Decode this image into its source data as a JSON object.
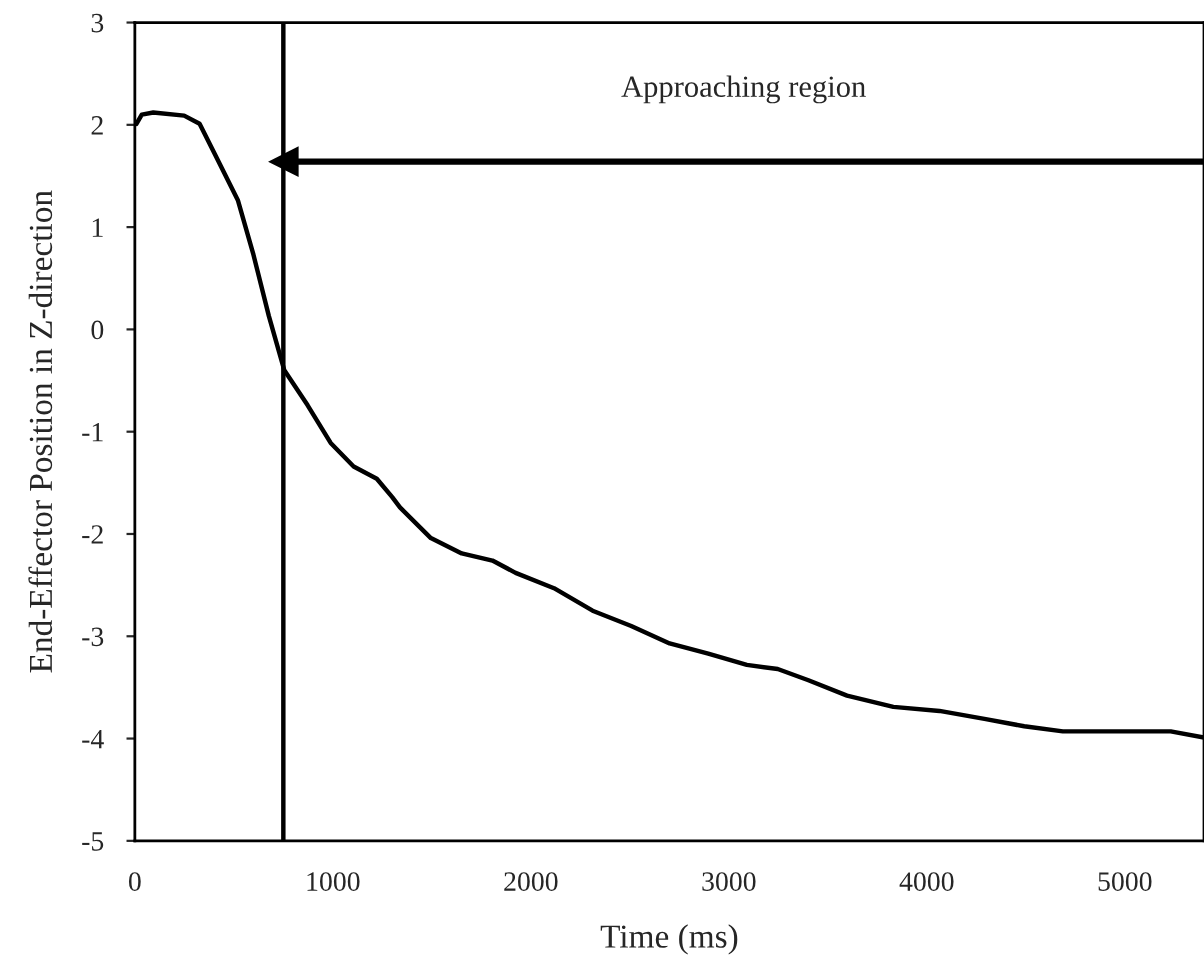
{
  "chart_data": {
    "type": "line",
    "xlabel": "Time (ms)",
    "ylabel": "End-Effector Position in Z-direction",
    "x": [
      8,
      35,
      93,
      249,
      327,
      405,
      521,
      599,
      677,
      755,
      872,
      989,
      1105,
      1222,
      1300,
      1339,
      1495,
      1651,
      1806,
      1923,
      2117,
      2312,
      2507,
      2701,
      2896,
      3091,
      3247,
      3402,
      3597,
      3831,
      4064,
      4298,
      4492,
      4687,
      4998,
      5232,
      5400
    ],
    "series": [
      {
        "color": "#000000",
        "values": [
          2.01,
          2.1,
          2.12,
          2.09,
          2.01,
          1.71,
          1.26,
          0.73,
          0.13,
          -0.4,
          -0.74,
          -1.11,
          -1.34,
          -1.46,
          -1.64,
          -1.74,
          -2.04,
          -2.19,
          -2.26,
          -2.38,
          -2.53,
          -2.75,
          -2.9,
          -3.07,
          -3.17,
          -3.28,
          -3.32,
          -3.43,
          -3.58,
          -3.69,
          -3.73,
          -3.81,
          -3.88,
          -3.93,
          -3.93,
          -3.93,
          -3.99
        ]
      },
      {
        "type": "line",
        "name": "Approaching region",
        "color": "#000000",
        "x": [
          750,
          5400
        ],
        "values": [
          1.64,
          1.64
        ],
        "marker": "triangle"
      }
    ],
    "xlim": [
      0,
      5400
    ],
    "ylim": [
      -5,
      3
    ],
    "xticks": [
      0,
      1000,
      2000,
      3000,
      4000,
      5000
    ],
    "yticks": [
      -5,
      -4,
      -3,
      -2,
      -1,
      0,
      1,
      2,
      3
    ],
    "ref_lines": [
      {
        "axis": "x",
        "value": 750,
        "color": "#000000"
      }
    ],
    "grid": false,
    "legend": false,
    "marker": "none",
    "line_style": "solid"
  }
}
